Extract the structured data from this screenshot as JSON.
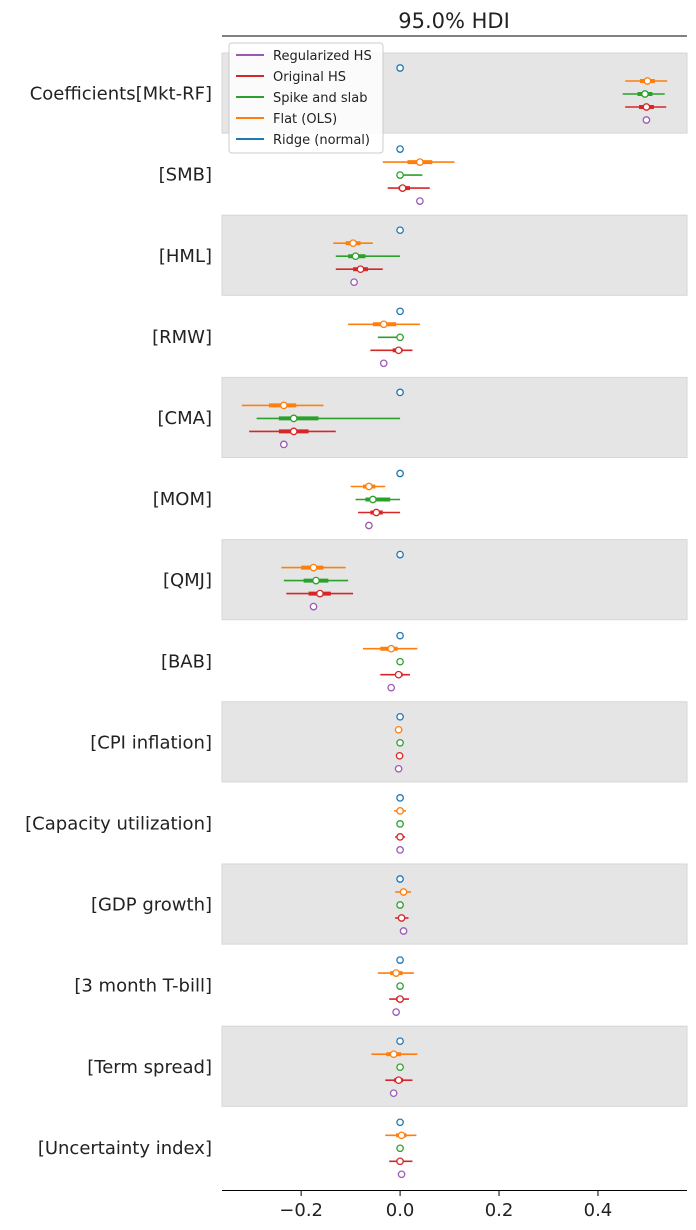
{
  "chart_data": {
    "type": "forest",
    "title": "95.0% HDI",
    "xlim": [
      -0.36,
      0.58
    ],
    "xticks": [
      -0.2,
      0.0,
      0.2,
      0.4
    ],
    "xtick_labels": [
      "−0.2",
      "0.0",
      "0.2",
      "0.4"
    ],
    "legend_position": "top-left",
    "legend": [
      {
        "name": "Regularized HS",
        "color": "#9b59b6"
      },
      {
        "name": "Original HS",
        "color": "#d62728"
      },
      {
        "name": "Spike and slab",
        "color": "#2ca02c"
      },
      {
        "name": "Flat (OLS)",
        "color": "#ff7f0e"
      },
      {
        "name": "Ridge (normal)",
        "color": "#1f77b4"
      }
    ],
    "row_order": [
      "Ridge (normal)",
      "Flat (OLS)",
      "Spike and slab",
      "Original HS",
      "Regularized HS"
    ],
    "series_colors": {
      "Ridge (normal)": "#1f77b4",
      "Flat (OLS)": "#ff7f0e",
      "Spike and slab": "#2ca02c",
      "Original HS": "#d62728",
      "Regularized HS": "#9b59b6"
    },
    "variables": [
      {
        "label": "Coefficients[Mkt-RF]",
        "estimates": [
          {
            "mean": 0.0,
            "hdi": [
              0.0,
              0.0
            ],
            "iqr": [
              0.0,
              0.0
            ]
          },
          {
            "mean": 0.5,
            "hdi": [
              0.455,
              0.54
            ],
            "iqr": [
              0.485,
              0.515
            ]
          },
          {
            "mean": 0.495,
            "hdi": [
              0.45,
              0.535
            ],
            "iqr": [
              0.48,
              0.51
            ]
          },
          {
            "mean": 0.498,
            "hdi": [
              0.455,
              0.538
            ],
            "iqr": [
              0.483,
              0.513
            ]
          },
          {
            "mean": 0.498,
            "hdi": [
              0.498,
              0.498
            ],
            "iqr": [
              0.498,
              0.498
            ]
          }
        ]
      },
      {
        "label": "[SMB]",
        "estimates": [
          {
            "mean": 0.0,
            "hdi": [
              0.0,
              0.0
            ],
            "iqr": [
              0.0,
              0.0
            ]
          },
          {
            "mean": 0.04,
            "hdi": [
              -0.035,
              0.11
            ],
            "iqr": [
              0.015,
              0.065
            ]
          },
          {
            "mean": 0.0,
            "hdi": [
              -0.003,
              0.045
            ],
            "iqr": [
              0.0,
              0.0
            ]
          },
          {
            "mean": 0.005,
            "hdi": [
              -0.025,
              0.06
            ],
            "iqr": [
              -0.003,
              0.02
            ]
          },
          {
            "mean": 0.04,
            "hdi": [
              0.04,
              0.04
            ],
            "iqr": [
              0.04,
              0.04
            ]
          }
        ]
      },
      {
        "label": "[HML]",
        "estimates": [
          {
            "mean": 0.0,
            "hdi": [
              0.0,
              0.0
            ],
            "iqr": [
              0.0,
              0.0
            ]
          },
          {
            "mean": -0.095,
            "hdi": [
              -0.135,
              -0.055
            ],
            "iqr": [
              -0.11,
              -0.08
            ]
          },
          {
            "mean": -0.09,
            "hdi": [
              -0.13,
              0.0
            ],
            "iqr": [
              -0.105,
              -0.07
            ]
          },
          {
            "mean": -0.08,
            "hdi": [
              -0.13,
              -0.035
            ],
            "iqr": [
              -0.095,
              -0.065
            ]
          },
          {
            "mean": -0.093,
            "hdi": [
              -0.093,
              -0.093
            ],
            "iqr": [
              -0.093,
              -0.093
            ]
          }
        ]
      },
      {
        "label": "[RMW]",
        "estimates": [
          {
            "mean": 0.0,
            "hdi": [
              0.0,
              0.0
            ],
            "iqr": [
              0.0,
              0.0
            ]
          },
          {
            "mean": -0.033,
            "hdi": [
              -0.105,
              0.04
            ],
            "iqr": [
              -0.055,
              -0.008
            ]
          },
          {
            "mean": 0.0,
            "hdi": [
              -0.045,
              0.0
            ],
            "iqr": [
              0.0,
              0.0
            ]
          },
          {
            "mean": -0.003,
            "hdi": [
              -0.06,
              0.025
            ],
            "iqr": [
              -0.015,
              0.005
            ]
          },
          {
            "mean": -0.033,
            "hdi": [
              -0.033,
              -0.033
            ],
            "iqr": [
              -0.033,
              -0.033
            ]
          }
        ]
      },
      {
        "label": "[CMA]",
        "estimates": [
          {
            "mean": 0.0,
            "hdi": [
              0.0,
              0.0
            ],
            "iqr": [
              0.0,
              0.0
            ]
          },
          {
            "mean": -0.235,
            "hdi": [
              -0.32,
              -0.155
            ],
            "iqr": [
              -0.265,
              -0.21
            ]
          },
          {
            "mean": -0.215,
            "hdi": [
              -0.29,
              0.0
            ],
            "iqr": [
              -0.245,
              -0.165
            ]
          },
          {
            "mean": -0.215,
            "hdi": [
              -0.305,
              -0.13
            ],
            "iqr": [
              -0.245,
              -0.185
            ]
          },
          {
            "mean": -0.235,
            "hdi": [
              -0.235,
              -0.235
            ],
            "iqr": [
              -0.235,
              -0.235
            ]
          }
        ]
      },
      {
        "label": "[MOM]",
        "estimates": [
          {
            "mean": 0.0,
            "hdi": [
              0.0,
              0.0
            ],
            "iqr": [
              0.0,
              0.0
            ]
          },
          {
            "mean": -0.063,
            "hdi": [
              -0.1,
              -0.03
            ],
            "iqr": [
              -0.075,
              -0.05
            ]
          },
          {
            "mean": -0.055,
            "hdi": [
              -0.09,
              0.0
            ],
            "iqr": [
              -0.07,
              -0.02
            ]
          },
          {
            "mean": -0.048,
            "hdi": [
              -0.085,
              0.0
            ],
            "iqr": [
              -0.06,
              -0.035
            ]
          },
          {
            "mean": -0.063,
            "hdi": [
              -0.063,
              -0.063
            ],
            "iqr": [
              -0.063,
              -0.063
            ]
          }
        ]
      },
      {
        "label": "[QMJ]",
        "estimates": [
          {
            "mean": 0.0,
            "hdi": [
              0.0,
              0.0
            ],
            "iqr": [
              0.0,
              0.0
            ]
          },
          {
            "mean": -0.175,
            "hdi": [
              -0.24,
              -0.11
            ],
            "iqr": [
              -0.2,
              -0.155
            ]
          },
          {
            "mean": -0.17,
            "hdi": [
              -0.235,
              -0.105
            ],
            "iqr": [
              -0.195,
              -0.145
            ]
          },
          {
            "mean": -0.162,
            "hdi": [
              -0.23,
              -0.095
            ],
            "iqr": [
              -0.185,
              -0.14
            ]
          },
          {
            "mean": -0.175,
            "hdi": [
              -0.175,
              -0.175
            ],
            "iqr": [
              -0.175,
              -0.175
            ]
          }
        ]
      },
      {
        "label": "[BAB]",
        "estimates": [
          {
            "mean": 0.0,
            "hdi": [
              0.0,
              0.0
            ],
            "iqr": [
              0.0,
              0.0
            ]
          },
          {
            "mean": -0.018,
            "hdi": [
              -0.075,
              0.035
            ],
            "iqr": [
              -0.04,
              -0.005
            ]
          },
          {
            "mean": 0.0,
            "hdi": [
              0.0,
              0.0
            ],
            "iqr": [
              0.0,
              0.0
            ]
          },
          {
            "mean": -0.003,
            "hdi": [
              -0.04,
              0.02
            ],
            "iqr": [
              -0.01,
              0.005
            ]
          },
          {
            "mean": -0.018,
            "hdi": [
              -0.018,
              -0.018
            ],
            "iqr": [
              -0.018,
              -0.018
            ]
          }
        ]
      },
      {
        "label": "[CPI inflation]",
        "estimates": [
          {
            "mean": 0.0,
            "hdi": [
              0.0,
              0.0
            ],
            "iqr": [
              0.0,
              0.0
            ]
          },
          {
            "mean": -0.003,
            "hdi": [
              -0.01,
              0.005
            ],
            "iqr": [
              -0.005,
              0.002
            ]
          },
          {
            "mean": 0.0,
            "hdi": [
              0.0,
              0.0
            ],
            "iqr": [
              0.0,
              0.0
            ]
          },
          {
            "mean": -0.001,
            "hdi": [
              -0.008,
              0.006
            ],
            "iqr": [
              -0.004,
              0.002
            ]
          },
          {
            "mean": -0.003,
            "hdi": [
              -0.003,
              -0.003
            ],
            "iqr": [
              -0.003,
              -0.003
            ]
          }
        ]
      },
      {
        "label": "[Capacity utilization]",
        "estimates": [
          {
            "mean": 0.0,
            "hdi": [
              0.0,
              0.0
            ],
            "iqr": [
              0.0,
              0.0
            ]
          },
          {
            "mean": 0.0,
            "hdi": [
              -0.012,
              0.012
            ],
            "iqr": [
              -0.005,
              0.005
            ]
          },
          {
            "mean": 0.0,
            "hdi": [
              0.0,
              0.0
            ],
            "iqr": [
              0.0,
              0.0
            ]
          },
          {
            "mean": 0.0,
            "hdi": [
              -0.01,
              0.01
            ],
            "iqr": [
              -0.004,
              0.004
            ]
          },
          {
            "mean": 0.0,
            "hdi": [
              0.0,
              0.0
            ],
            "iqr": [
              0.0,
              0.0
            ]
          }
        ]
      },
      {
        "label": "[GDP growth]",
        "estimates": [
          {
            "mean": 0.0,
            "hdi": [
              0.0,
              0.0
            ],
            "iqr": [
              0.0,
              0.0
            ]
          },
          {
            "mean": 0.007,
            "hdi": [
              -0.01,
              0.022
            ],
            "iqr": [
              0.0,
              0.012
            ]
          },
          {
            "mean": 0.0,
            "hdi": [
              0.0,
              0.0
            ],
            "iqr": [
              0.0,
              0.0
            ]
          },
          {
            "mean": 0.003,
            "hdi": [
              -0.01,
              0.017
            ],
            "iqr": [
              -0.002,
              0.008
            ]
          },
          {
            "mean": 0.007,
            "hdi": [
              0.007,
              0.007
            ],
            "iqr": [
              0.007,
              0.007
            ]
          }
        ]
      },
      {
        "label": "[3 month T-bill]",
        "estimates": [
          {
            "mean": 0.0,
            "hdi": [
              0.0,
              0.0
            ],
            "iqr": [
              0.0,
              0.0
            ]
          },
          {
            "mean": -0.008,
            "hdi": [
              -0.045,
              0.028
            ],
            "iqr": [
              -0.02,
              0.005
            ]
          },
          {
            "mean": 0.0,
            "hdi": [
              0.0,
              0.0
            ],
            "iqr": [
              0.0,
              0.0
            ]
          },
          {
            "mean": 0.0,
            "hdi": [
              -0.022,
              0.018
            ],
            "iqr": [
              -0.008,
              0.007
            ]
          },
          {
            "mean": -0.008,
            "hdi": [
              -0.008,
              -0.008
            ],
            "iqr": [
              -0.008,
              -0.008
            ]
          }
        ]
      },
      {
        "label": "[Term spread]",
        "estimates": [
          {
            "mean": 0.0,
            "hdi": [
              0.0,
              0.0
            ],
            "iqr": [
              0.0,
              0.0
            ]
          },
          {
            "mean": -0.013,
            "hdi": [
              -0.058,
              0.035
            ],
            "iqr": [
              -0.028,
              0.002
            ]
          },
          {
            "mean": 0.0,
            "hdi": [
              0.0,
              0.0
            ],
            "iqr": [
              0.0,
              0.0
            ]
          },
          {
            "mean": -0.003,
            "hdi": [
              -0.03,
              0.025
            ],
            "iqr": [
              -0.012,
              0.006
            ]
          },
          {
            "mean": -0.013,
            "hdi": [
              -0.013,
              -0.013
            ],
            "iqr": [
              -0.013,
              -0.013
            ]
          }
        ]
      },
      {
        "label": "[Uncertainty index]",
        "estimates": [
          {
            "mean": 0.0,
            "hdi": [
              0.0,
              0.0
            ],
            "iqr": [
              0.0,
              0.0
            ]
          },
          {
            "mean": 0.003,
            "hdi": [
              -0.03,
              0.033
            ],
            "iqr": [
              -0.008,
              0.013
            ]
          },
          {
            "mean": 0.0,
            "hdi": [
              0.0,
              0.0
            ],
            "iqr": [
              0.0,
              0.0
            ]
          },
          {
            "mean": 0.0,
            "hdi": [
              -0.022,
              0.025
            ],
            "iqr": [
              -0.007,
              0.007
            ]
          },
          {
            "mean": 0.003,
            "hdi": [
              0.003,
              0.003
            ],
            "iqr": [
              0.003,
              0.003
            ]
          }
        ]
      }
    ]
  }
}
